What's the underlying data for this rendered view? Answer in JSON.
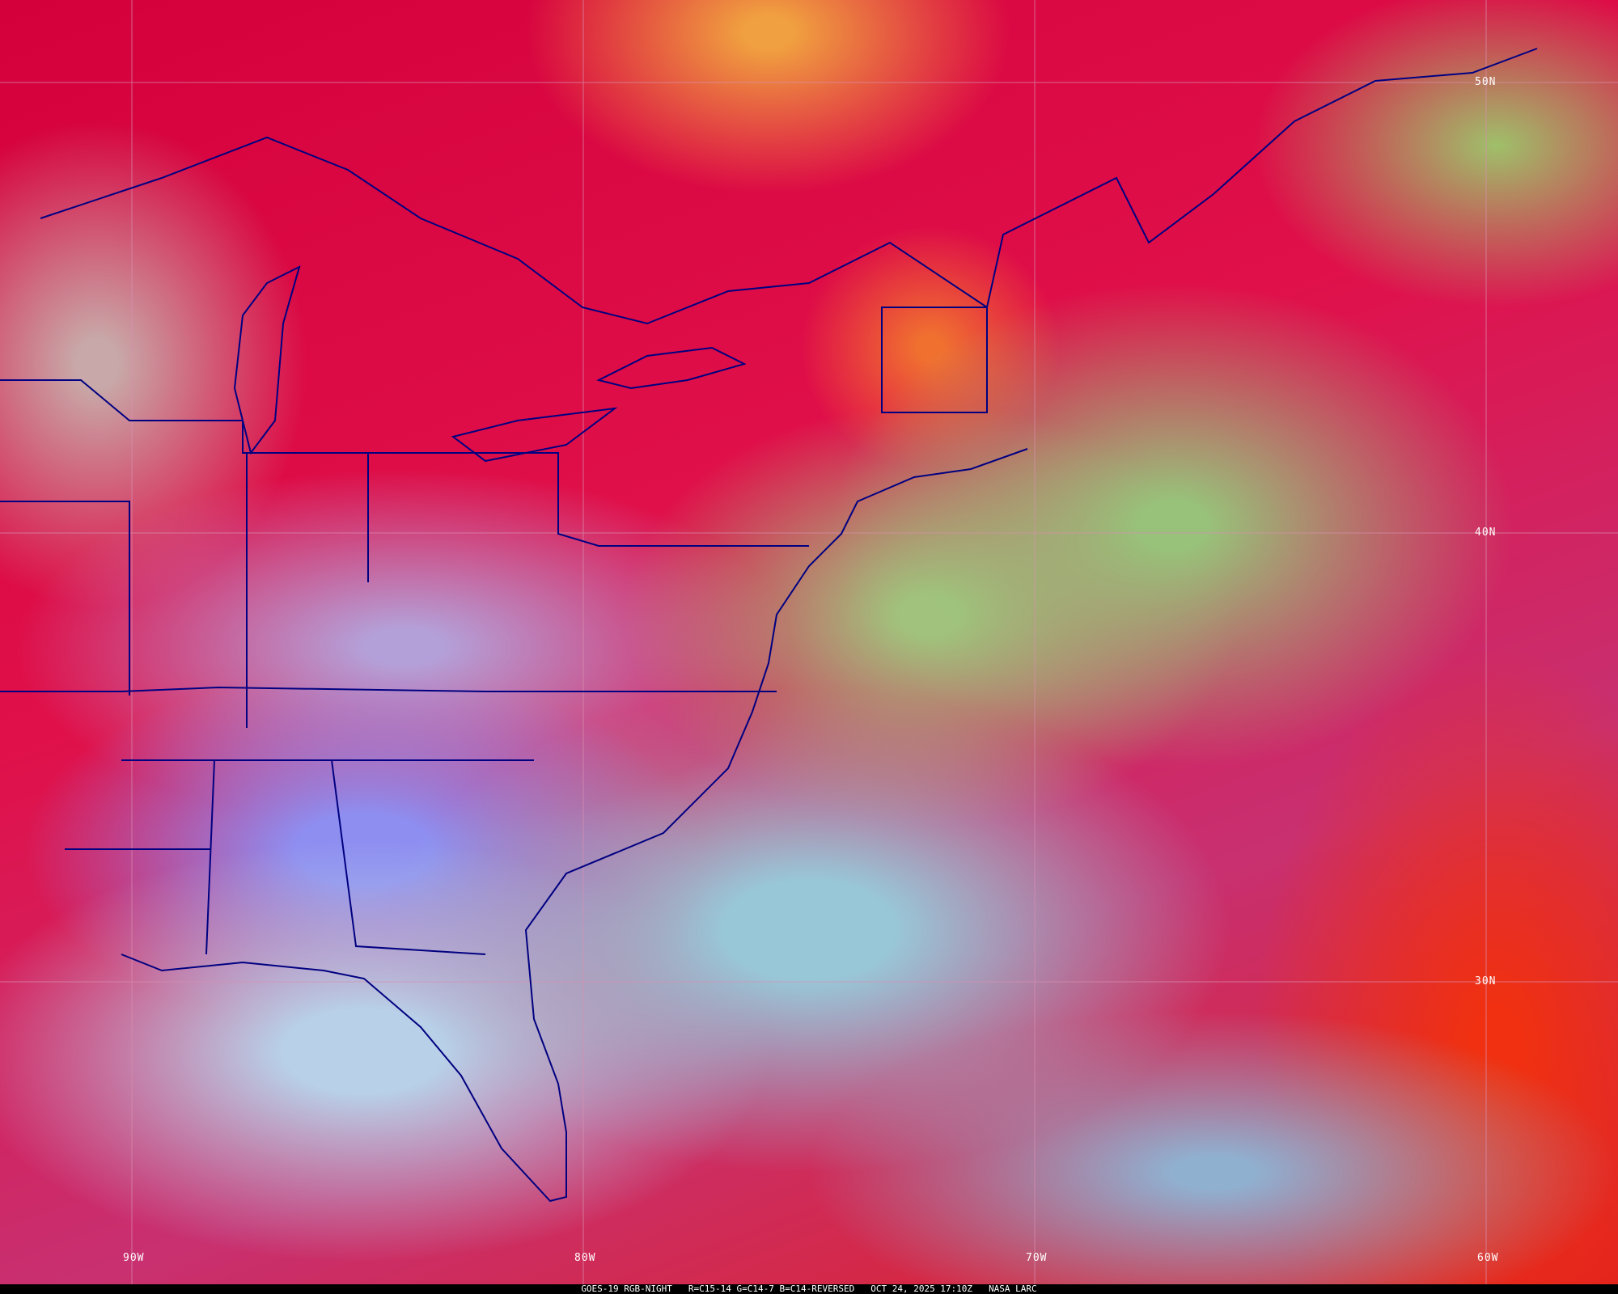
{
  "map": {
    "latitude_labels": [
      "50N",
      "40N",
      "30N"
    ],
    "longitude_labels": [
      "90W",
      "80W",
      "70W",
      "60W"
    ],
    "colors": {
      "border": "#000080",
      "grid": "#d890b0",
      "cold_cloud": "#d8003a",
      "low_cloud": "#a0c070",
      "clear_land": "#8e8ef0",
      "clear_ocean": "#b0d0e0"
    }
  },
  "caption": {
    "product": "GOES-19 RGB-NIGHT",
    "channels": "R=C15-14 G=C14-7 B=C14-REVERSED",
    "datetime": "OCT 24, 2025 17:10Z",
    "source": "NASA LARC"
  }
}
